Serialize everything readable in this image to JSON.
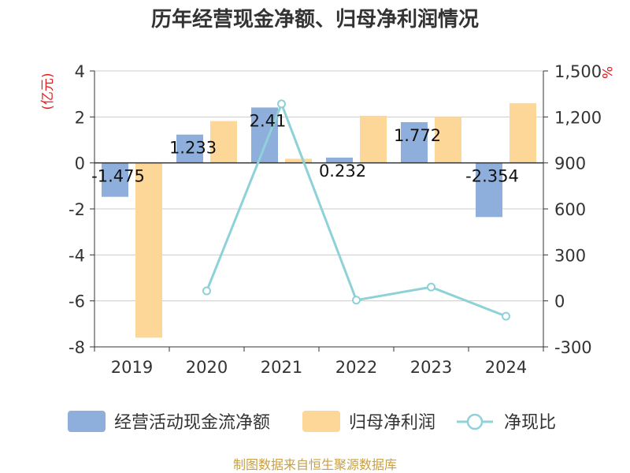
{
  "chart_data": {
    "type": "bar",
    "title": "历年经营现金净额、归母净利润情况",
    "categories": [
      "2019",
      "2020",
      "2021",
      "2022",
      "2023",
      "2024"
    ],
    "y_left": {
      "unit_label": "(亿元)",
      "ylim": [
        -8,
        4
      ],
      "ticks": [
        "4",
        "2",
        "0",
        "-2",
        "-4",
        "-6",
        "-8"
      ],
      "tick_values": [
        4,
        2,
        0,
        -2,
        -4,
        -6,
        -8
      ]
    },
    "y_right": {
      "unit_label": "%",
      "ylim": [
        -300,
        1500
      ],
      "ticks": [
        "1,500",
        "1,200",
        "900",
        "600",
        "300",
        "0",
        "-300"
      ],
      "tick_values": [
        1500,
        1200,
        900,
        600,
        300,
        0,
        -300
      ]
    },
    "series": [
      {
        "name": "经营活动现金流净额",
        "type": "bar",
        "axis": "left",
        "color": "#8eaedb",
        "values": [
          -1.475,
          1.233,
          2.41,
          0.232,
          1.772,
          -2.354
        ],
        "labels": [
          "-1.475",
          "1.233",
          "2.41",
          "0.232",
          "1.772",
          "-2.354"
        ]
      },
      {
        "name": "归母净利润",
        "type": "bar",
        "axis": "left",
        "color": "#fdd797",
        "values": [
          -7.6,
          1.82,
          0.18,
          2.05,
          2.0,
          2.6
        ]
      },
      {
        "name": "净现比",
        "type": "line",
        "axis": "right",
        "color": "#8fd1d8",
        "values": [
          null,
          65,
          1285,
          5,
          90,
          -100
        ]
      }
    ],
    "grid": true,
    "legend_position": "bottom"
  },
  "source": "制图数据来自恒生聚源数据库"
}
